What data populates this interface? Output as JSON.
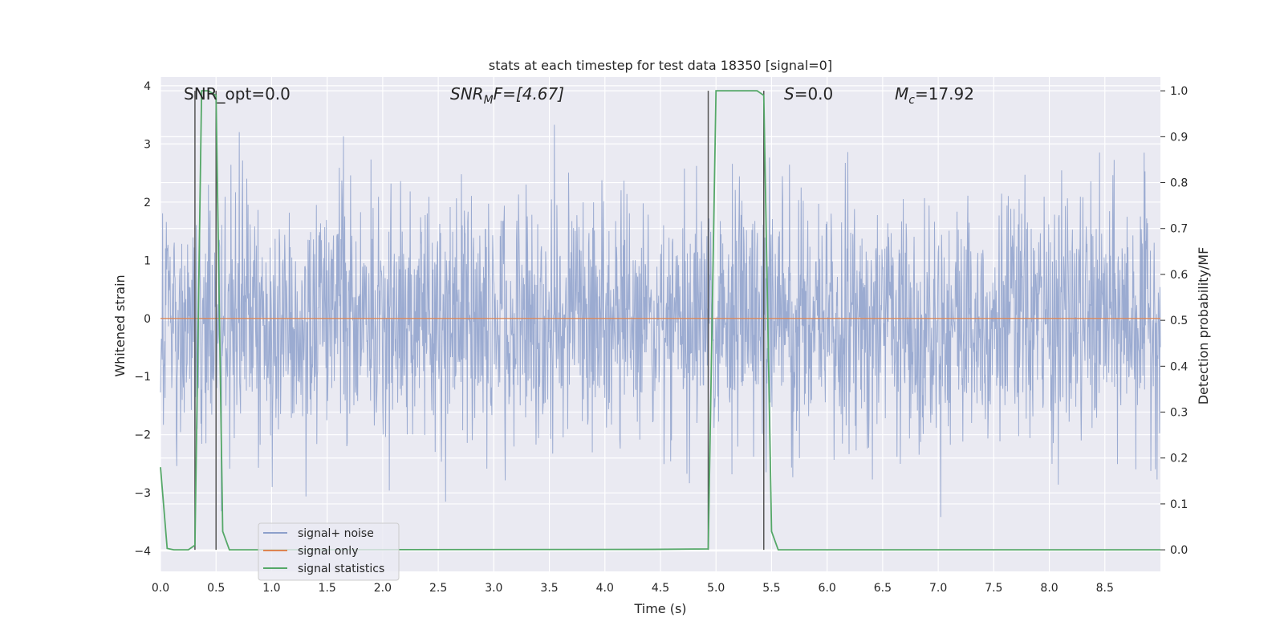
{
  "chart_data": {
    "type": "line",
    "title": "stats at each timestep for test data 18350 [signal=0]",
    "xlabel": "Time (s)",
    "ylabel_left": "Whitened strain",
    "ylabel_right": "Detection probability/MF",
    "xlim": [
      0.0,
      9.0
    ],
    "ylim_left": [
      -4.35,
      4.15
    ],
    "ylim_right": [
      -0.047,
      1.03
    ],
    "x_ticks": [
      0.0,
      0.5,
      1.0,
      1.5,
      2.0,
      2.5,
      3.0,
      3.5,
      4.0,
      4.5,
      5.0,
      5.5,
      6.0,
      6.5,
      7.0,
      7.5,
      8.0,
      8.5
    ],
    "x_tick_labels": [
      "0.0",
      "0.5",
      "1.0",
      "1.5",
      "2.0",
      "2.5",
      "3.0",
      "3.5",
      "4.0",
      "4.5",
      "5.0",
      "5.5",
      "6.0",
      "6.5",
      "7.0",
      "7.5",
      "8.0",
      "8.5"
    ],
    "y_left_ticks": [
      4,
      3,
      2,
      1,
      0,
      -1,
      -2,
      -3,
      -4
    ],
    "y_left_tick_labels": [
      "4",
      "3",
      "2",
      "1",
      "0",
      "−1",
      "−2",
      "−3",
      "−4"
    ],
    "y_right_ticks": [
      1.0,
      0.9,
      0.8,
      0.7,
      0.6,
      0.5,
      0.4,
      0.3,
      0.2,
      0.1,
      0.0
    ],
    "y_right_tick_labels": [
      "1.0",
      "0.9",
      "0.8",
      "0.7",
      "0.6",
      "0.5",
      "0.4",
      "0.3",
      "0.2",
      "0.1",
      "0.0"
    ],
    "grid": true,
    "legend_placement": "lower-left",
    "annotations": {
      "snr_opt": "SNR_opt=0.0",
      "snr_mf_base": "SNR",
      "snr_mf_sub": "M",
      "snr_mf_rest": "F=[4.67]",
      "s_var": "S",
      "s_rest": "=0.0",
      "mc_base": "M",
      "mc_sub": "c",
      "mc_rest": "=17.92"
    },
    "vlines_x": [
      0.31,
      0.5,
      4.93,
      5.43
    ],
    "series": [
      {
        "name": "signal+ noise",
        "color": "#8da0cb",
        "axis": "left",
        "kind": "noise",
        "x_range": [
          0.0,
          9.0
        ],
        "envelope_max": 3.8,
        "envelope_min": -4.0,
        "note_values": "dense random samples"
      },
      {
        "name": "signal only",
        "color": "#dd8452",
        "axis": "left",
        "x": [
          0.0,
          9.0
        ],
        "y": [
          0.0,
          0.0
        ]
      },
      {
        "name": "signal statistics",
        "color": "#55a868",
        "axis": "right",
        "x": [
          0.0,
          0.06,
          0.12,
          0.18,
          0.25,
          0.31,
          0.37,
          0.43,
          0.5,
          0.56,
          0.62,
          0.68,
          0.75,
          0.81,
          0.87,
          4.43,
          4.93,
          5.0,
          5.06,
          5.12,
          5.18,
          5.25,
          5.31,
          5.37,
          5.43,
          5.5,
          5.56,
          5.62,
          5.68,
          9.0
        ],
        "y": [
          0.18,
          0.003,
          0.0,
          0.0,
          0.0,
          0.01,
          1.0,
          1.0,
          0.99,
          0.04,
          0.0,
          0.0,
          0.0,
          0.0,
          0.0,
          0.001,
          0.002,
          1.0,
          1.0,
          1.0,
          1.0,
          1.0,
          1.0,
          1.0,
          0.99,
          0.04,
          0.0,
          0.0,
          0.0,
          0.0
        ]
      }
    ]
  },
  "legend": {
    "items": [
      {
        "label": "signal+ noise",
        "color": "#8da0cb"
      },
      {
        "label": "signal only",
        "color": "#dd8452"
      },
      {
        "label": "signal statistics",
        "color": "#55a868"
      }
    ]
  },
  "colors": {
    "plot_background": "#eaeaf2",
    "grid": "#ffffff",
    "vline": "#555555"
  }
}
